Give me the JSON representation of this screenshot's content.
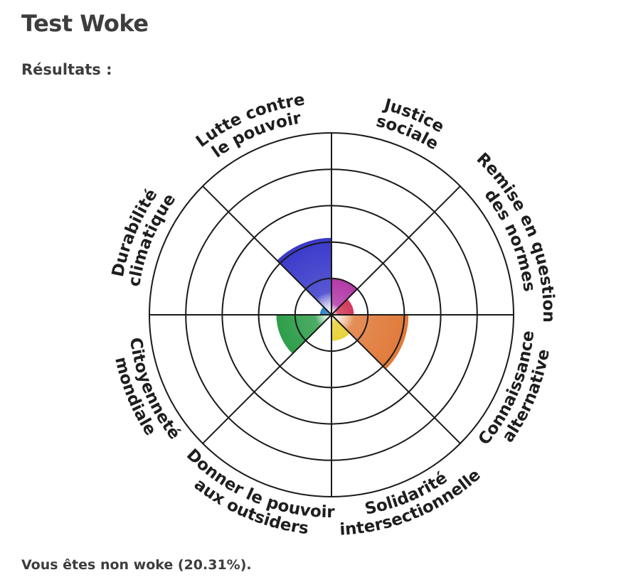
{
  "page": {
    "title": "Test Woke",
    "subtitle": "Résultats :",
    "result_text": "Vous êtes non woke (20.31%)."
  },
  "chart_data": {
    "type": "polar-area",
    "rings": 5,
    "max": 5,
    "grid": true,
    "categories": [
      {
        "lines": [
          "Justice",
          "sociale"
        ],
        "value": 1,
        "color": "#b23aa8"
      },
      {
        "lines": [
          "Remise en question",
          "des normes"
        ],
        "value": 0.6,
        "color": "#d13a5a"
      },
      {
        "lines": [
          "Connaissance",
          "alternative"
        ],
        "value": 2.1,
        "color": "#e07a3a"
      },
      {
        "lines": [
          "Solidarité",
          "intersectionnelle"
        ],
        "value": 0.7,
        "color": "#e8d23a"
      },
      {
        "lines": [
          "Donner le pouvoir",
          "aux outsiders"
        ],
        "value": 0,
        "color": "#9ad36a"
      },
      {
        "lines": [
          "Citoyenneté",
          "mondiale"
        ],
        "value": 1.5,
        "color": "#2e9e4a"
      },
      {
        "lines": [
          "Durabilité",
          "climatique"
        ],
        "value": 0.3,
        "color": "#2f84c8"
      },
      {
        "lines": [
          "Lutte contre",
          "le pouvoir"
        ],
        "value": 2.1,
        "color": "#3a3acb"
      }
    ]
  }
}
